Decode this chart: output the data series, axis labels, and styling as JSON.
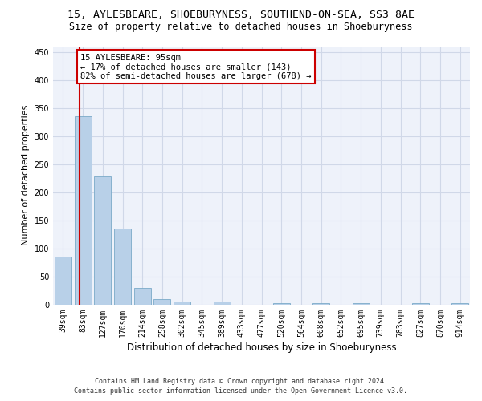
{
  "title_line1": "15, AYLESBEARE, SHOEBURYNESS, SOUTHEND-ON-SEA, SS3 8AE",
  "title_line2": "Size of property relative to detached houses in Shoeburyness",
  "xlabel": "Distribution of detached houses by size in Shoeburyness",
  "ylabel": "Number of detached properties",
  "categories": [
    "39sqm",
    "83sqm",
    "127sqm",
    "170sqm",
    "214sqm",
    "258sqm",
    "302sqm",
    "345sqm",
    "389sqm",
    "433sqm",
    "477sqm",
    "520sqm",
    "564sqm",
    "608sqm",
    "652sqm",
    "695sqm",
    "739sqm",
    "783sqm",
    "827sqm",
    "870sqm",
    "914sqm"
  ],
  "values": [
    85,
    335,
    228,
    135,
    30,
    10,
    5,
    0,
    6,
    0,
    0,
    3,
    0,
    3,
    0,
    3,
    0,
    0,
    3,
    0,
    3
  ],
  "bar_color": "#b8d0e8",
  "bar_edge_color": "#7aaac8",
  "marker_color": "#cc0000",
  "annotation_line1": "15 AYLESBEARE: 95sqm",
  "annotation_line2": "← 17% of detached houses are smaller (143)",
  "annotation_line3": "82% of semi-detached houses are larger (678) →",
  "annotation_box_color": "#cc0000",
  "ylim": [
    0,
    460
  ],
  "yticks": [
    0,
    50,
    100,
    150,
    200,
    250,
    300,
    350,
    400,
    450
  ],
  "grid_color": "#d0d8e8",
  "bg_color": "#eef2fa",
  "footer_line1": "Contains HM Land Registry data © Crown copyright and database right 2024.",
  "footer_line2": "Contains public sector information licensed under the Open Government Licence v3.0.",
  "title_fontsize": 9.5,
  "subtitle_fontsize": 8.5,
  "xlabel_fontsize": 8.5,
  "ylabel_fontsize": 8,
  "tick_fontsize": 7,
  "annotation_fontsize": 7.5,
  "footer_fontsize": 6
}
